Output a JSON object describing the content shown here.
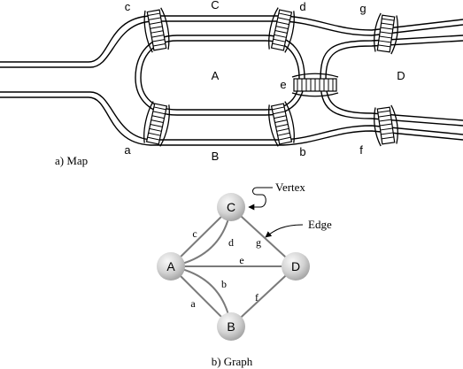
{
  "map": {
    "caption": "a) Map",
    "land_labels": {
      "A": "A",
      "B": "B",
      "C": "C",
      "D": "D"
    },
    "bridge_labels": {
      "a": "a",
      "b": "b",
      "c": "c",
      "d": "d",
      "e": "e",
      "f": "f",
      "g": "g"
    }
  },
  "graph": {
    "caption": "b) Graph",
    "vertex_callout": "Vertex",
    "edge_callout": "Edge",
    "nodes": {
      "A": "A",
      "B": "B",
      "C": "C",
      "D": "D"
    },
    "edge_labels": {
      "a": "a",
      "b": "b",
      "c": "c",
      "d": "d",
      "e": "e",
      "f": "f",
      "g": "g"
    }
  },
  "colors": {
    "ink": "#000000",
    "edge": "#7a7a7a",
    "node_light": "#f4f4f4",
    "node_dark": "#a9a9a9"
  }
}
